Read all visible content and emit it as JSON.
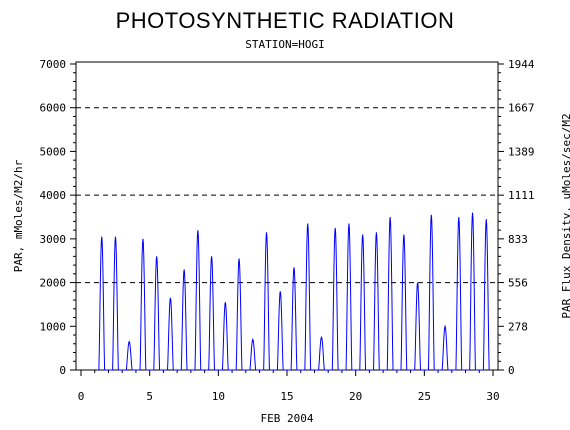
{
  "chart_data": {
    "type": "line",
    "title": "PHOTOSYNTHETIC RADIATION",
    "subtitle": "STATION=HOGI",
    "xlabel": "FEB 2004",
    "ylabel": "PAR, mMoles/M2/hr",
    "y2label": "PAR Flux Density, uMoles/sec/M2",
    "xlim": [
      0,
      30
    ],
    "ylim": [
      0,
      7000
    ],
    "y2lim": [
      0,
      1944
    ],
    "x_ticks": [
      "0",
      "5",
      "10",
      "15",
      "20",
      "25",
      "30"
    ],
    "y_ticks": [
      "0",
      "1000",
      "2000",
      "3000",
      "4000",
      "5000",
      "6000",
      "7000"
    ],
    "y2_ticks": [
      "0",
      "278",
      "556",
      "833",
      "1111",
      "1389",
      "1667",
      "1944"
    ],
    "reference_lines_y": [
      2000,
      4000,
      6000
    ],
    "line_color": "#0000ff",
    "series": [
      {
        "daily_peaks": [
          {
            "day": 1,
            "peak": 3050
          },
          {
            "day": 2,
            "peak": 3050
          },
          {
            "day": 3,
            "peak": 650
          },
          {
            "day": 4,
            "peak": 3000
          },
          {
            "day": 5,
            "peak": 2600
          },
          {
            "day": 6,
            "peak": 1650
          },
          {
            "day": 7,
            "peak": 2300
          },
          {
            "day": 8,
            "peak": 3200
          },
          {
            "day": 9,
            "peak": 2600
          },
          {
            "day": 10,
            "peak": 1550
          },
          {
            "day": 11,
            "peak": 2550
          },
          {
            "day": 12,
            "peak": 700
          },
          {
            "day": 13,
            "peak": 3150
          },
          {
            "day": 14,
            "peak": 1800
          },
          {
            "day": 15,
            "peak": 2350
          },
          {
            "day": 16,
            "peak": 3350
          },
          {
            "day": 17,
            "peak": 750
          },
          {
            "day": 18,
            "peak": 3250
          },
          {
            "day": 19,
            "peak": 3350
          },
          {
            "day": 20,
            "peak": 3100
          },
          {
            "day": 21,
            "peak": 3150
          },
          {
            "day": 22,
            "peak": 3500
          },
          {
            "day": 23,
            "peak": 3100
          },
          {
            "day": 24,
            "peak": 2000
          },
          {
            "day": 25,
            "peak": 3550
          },
          {
            "day": 26,
            "peak": 1000
          },
          {
            "day": 27,
            "peak": 3500
          },
          {
            "day": 28,
            "peak": 3600
          },
          {
            "day": 29,
            "peak": 3450
          }
        ]
      }
    ]
  }
}
